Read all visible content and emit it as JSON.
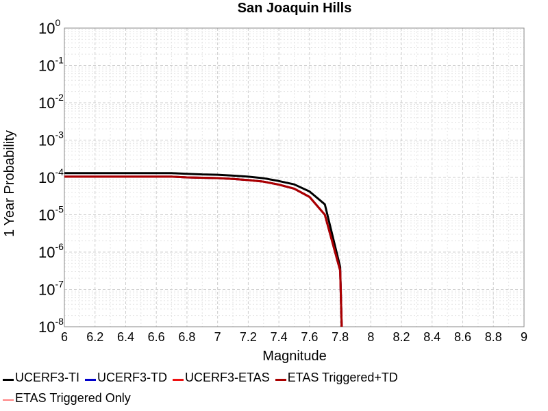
{
  "chart_data": {
    "type": "line",
    "title": "San Joaquin Hills",
    "xlabel": "Magnitude",
    "ylabel": "1 Year Probability",
    "xlim": [
      6,
      9
    ],
    "ylim": [
      1e-08,
      1
    ],
    "y_scale": "log",
    "grid": true,
    "legend_position": "bottom",
    "x_ticks": [
      "6",
      "6.2",
      "6.4",
      "6.6",
      "6.8",
      "7",
      "7.2",
      "7.4",
      "7.6",
      "7.8",
      "8",
      "8.2",
      "8.4",
      "8.6",
      "8.8",
      "9"
    ],
    "y_ticks": [
      {
        "base": "10",
        "exp": "0"
      },
      {
        "base": "10",
        "exp": "-1"
      },
      {
        "base": "10",
        "exp": "-2"
      },
      {
        "base": "10",
        "exp": "-3"
      },
      {
        "base": "10",
        "exp": "-4"
      },
      {
        "base": "10",
        "exp": "-5"
      },
      {
        "base": "10",
        "exp": "-6"
      },
      {
        "base": "10",
        "exp": "-7"
      },
      {
        "base": "10",
        "exp": "-8"
      }
    ],
    "series": [
      {
        "name": "UCERF3-TI",
        "color": "#000000",
        "x": [
          6.0,
          6.1,
          6.2,
          6.3,
          6.4,
          6.5,
          6.6,
          6.7,
          6.8,
          6.9,
          7.0,
          7.1,
          7.2,
          7.3,
          7.4,
          7.5,
          7.6,
          7.7,
          7.8,
          7.81
        ],
        "y": [
          0.00013,
          0.00013,
          0.00013,
          0.00013,
          0.00013,
          0.00013,
          0.00013,
          0.00013,
          0.000125,
          0.00012,
          0.000118,
          0.000112,
          0.000105,
          9.5e-05,
          8e-05,
          6.5e-05,
          4.2e-05,
          1.9e-05,
          4e-07,
          1e-08
        ]
      },
      {
        "name": "UCERF3-TD",
        "color": "#0000cc",
        "x": [
          6.0,
          6.1,
          6.2,
          6.3,
          6.4,
          6.5,
          6.6,
          6.7,
          6.8,
          6.9,
          7.0,
          7.1,
          7.2,
          7.3,
          7.4,
          7.5,
          7.6,
          7.7,
          7.8,
          7.81
        ],
        "y": [
          0.000105,
          0.000105,
          0.000105,
          0.000105,
          0.000105,
          0.000105,
          0.000105,
          0.000105,
          0.0001,
          9.8e-05,
          9.6e-05,
          9.1e-05,
          8.5e-05,
          7.7e-05,
          6.4e-05,
          5e-05,
          3e-05,
          1e-05,
          3.2e-07,
          1e-08
        ]
      },
      {
        "name": "UCERF3-ETAS",
        "color": "#ee1111",
        "x": [
          6.0,
          6.1,
          6.2,
          6.3,
          6.4,
          6.5,
          6.6,
          6.7,
          6.8,
          6.9,
          7.0,
          7.1,
          7.2,
          7.3,
          7.4,
          7.5,
          7.6,
          7.7,
          7.8,
          7.81
        ],
        "y": [
          0.000105,
          0.000105,
          0.000105,
          0.000105,
          0.000105,
          0.000105,
          0.000105,
          0.000105,
          0.0001,
          9.8e-05,
          9.6e-05,
          9.1e-05,
          8.5e-05,
          7.7e-05,
          6.4e-05,
          5e-05,
          3e-05,
          1e-05,
          3.2e-07,
          1e-08
        ]
      },
      {
        "name": "ETAS Triggered+TD",
        "color": "#aa0000",
        "x": [
          6.0,
          6.1,
          6.2,
          6.3,
          6.4,
          6.5,
          6.6,
          6.7,
          6.8,
          6.9,
          7.0,
          7.1,
          7.2,
          7.3,
          7.4,
          7.5,
          7.6,
          7.7,
          7.8,
          7.81
        ],
        "y": [
          0.000105,
          0.000105,
          0.000105,
          0.000105,
          0.000105,
          0.000105,
          0.000105,
          0.000105,
          0.0001,
          9.8e-05,
          9.6e-05,
          9.1e-05,
          8.5e-05,
          7.7e-05,
          6.4e-05,
          5e-05,
          3e-05,
          1e-05,
          3.2e-07,
          1e-08
        ]
      },
      {
        "name": "ETAS Triggered Only",
        "color": "#ff8080",
        "x": [],
        "y": []
      }
    ]
  }
}
